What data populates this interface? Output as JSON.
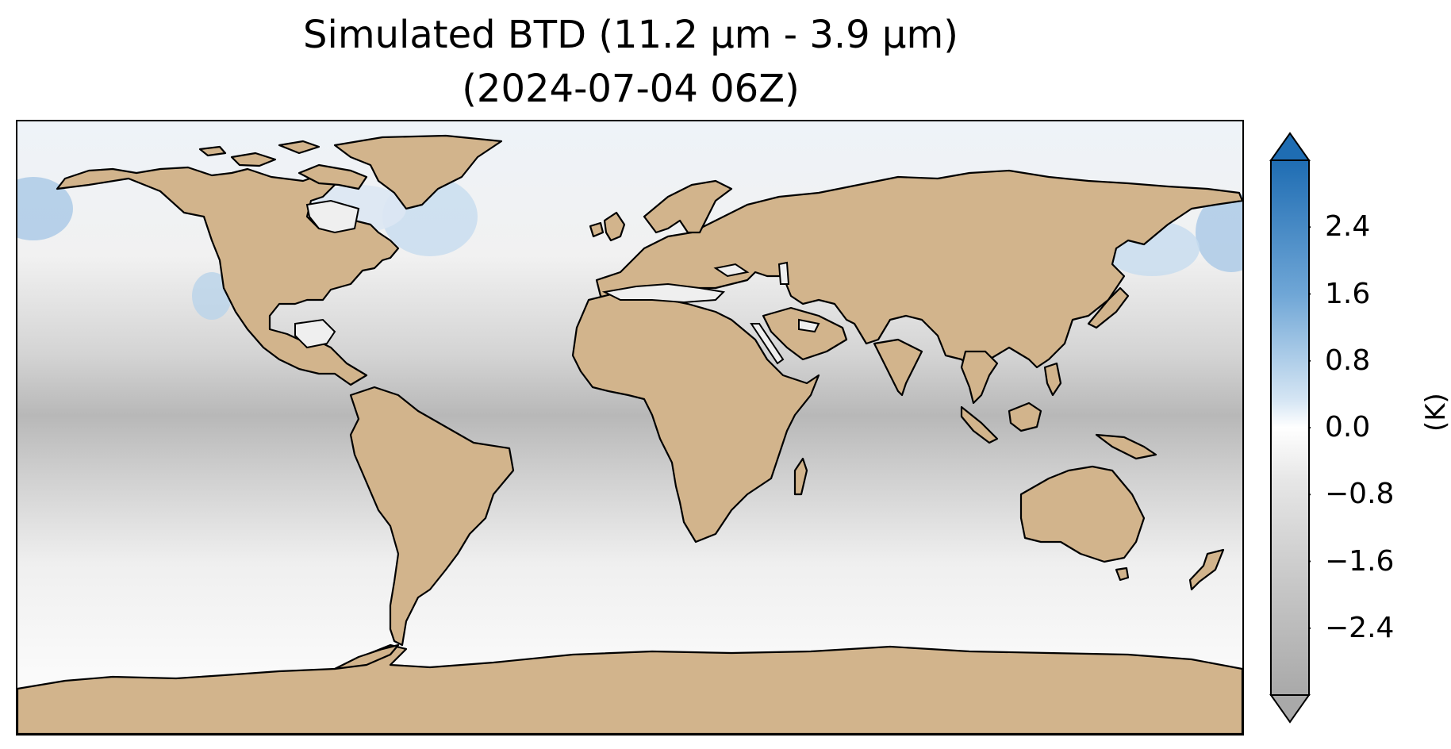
{
  "title_line1": "Simulated BTD (11.2 µm - 3.9 µm)",
  "title_line2": "(2024-07-04 06Z)",
  "colorbar": {
    "units": "(K)",
    "ticks": [
      "2.4",
      "1.6",
      "0.8",
      "0.0",
      "−0.8",
      "−1.6",
      "−2.4"
    ],
    "tick_values": [
      2.4,
      1.6,
      0.8,
      0.0,
      -0.8,
      -1.6,
      -2.4
    ],
    "range": [
      -3.2,
      3.2
    ],
    "extend": "both",
    "colors": {
      "positive": "#1f6db3",
      "neutral": "#ffffff",
      "negative": "#a9a9a9"
    }
  },
  "map": {
    "projection": "PlateCarree",
    "land_color": "#d2b48c",
    "coastline_color": "#000000"
  }
}
